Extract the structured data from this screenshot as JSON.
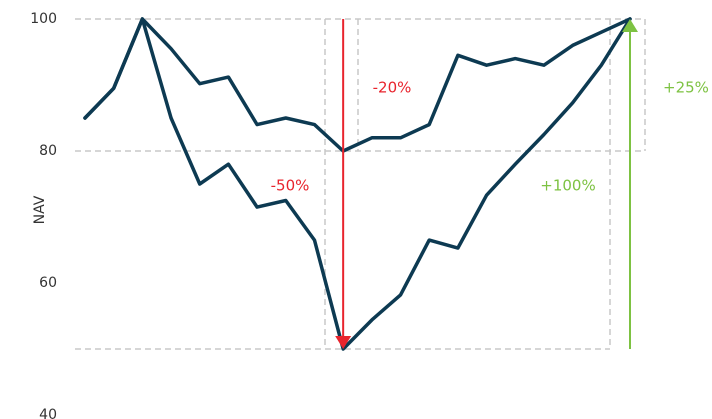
{
  "chart_data": {
    "type": "line",
    "y_label": "NAV",
    "x": [
      0,
      1,
      2,
      3,
      4,
      5,
      6,
      7,
      8,
      9,
      10,
      11,
      12,
      13,
      14,
      15,
      16,
      17,
      18,
      19
    ],
    "xlim": [
      0,
      19
    ],
    "ylim": [
      40,
      100
    ],
    "yticks": [
      40,
      60,
      80,
      100
    ],
    "series": [
      {
        "color": "#0d3a52",
        "values": [
          85,
          89.5,
          100,
          95.5,
          90.2,
          91.2,
          84,
          85,
          84,
          80,
          82,
          82,
          84,
          94.5,
          93,
          94,
          93,
          96,
          98,
          100
        ]
      },
      {
        "color": "#0d3a52",
        "values": [
          85,
          89.5,
          100,
          85,
          75,
          78,
          71.5,
          72.5,
          66.5,
          50,
          54.4,
          58.2,
          66.5,
          65.3,
          73.3,
          78,
          82.5,
          87.3,
          93,
          100
        ]
      }
    ],
    "reference_lines": [
      100,
      80,
      50
    ],
    "arrows": [
      {
        "x": 9,
        "from": 100,
        "to": 50,
        "color": "#e8242d"
      },
      {
        "x": 19,
        "from": 50,
        "to": 100,
        "color": "#7dc242"
      }
    ],
    "annotations": [
      {
        "text": "-20%",
        "color": "#e8242d"
      },
      {
        "text": "-50%",
        "color": "#e8242d"
      },
      {
        "text": "+100%",
        "color": "#7dc242"
      },
      {
        "text": "+25%",
        "color": "#7dc242"
      }
    ]
  }
}
